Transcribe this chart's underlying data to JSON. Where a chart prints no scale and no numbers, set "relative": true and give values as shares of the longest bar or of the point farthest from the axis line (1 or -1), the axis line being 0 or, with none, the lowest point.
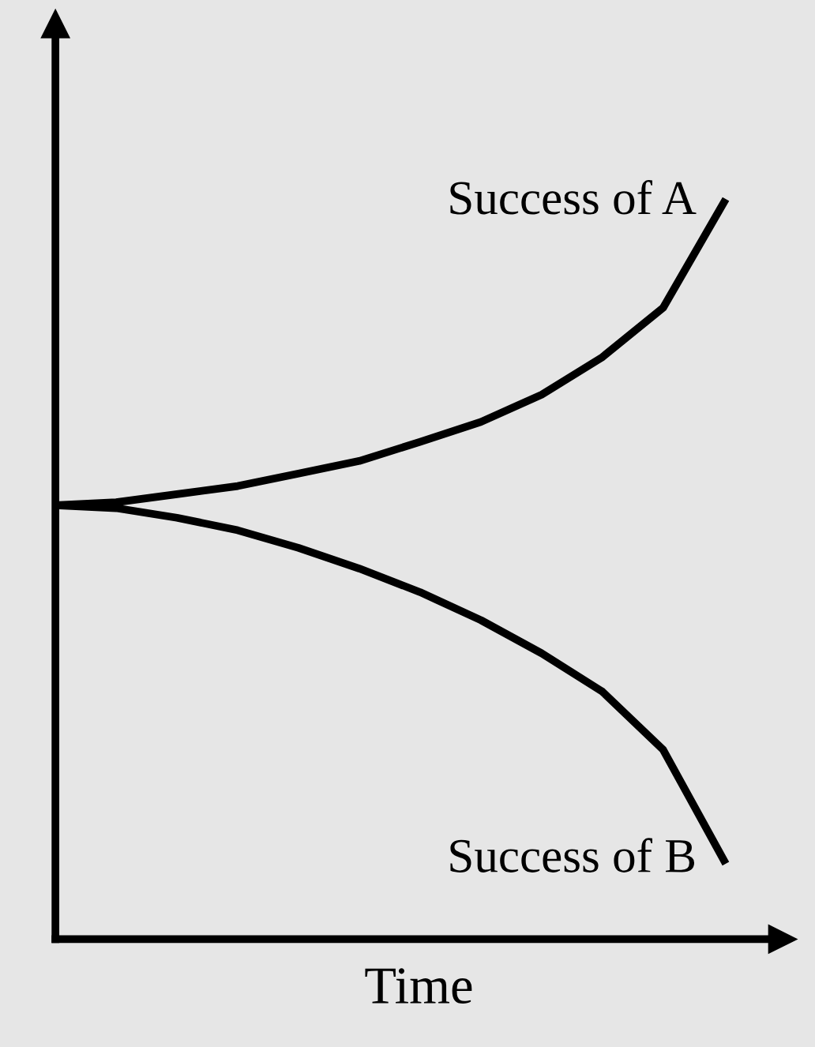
{
  "chart_data": {
    "type": "line",
    "relative": true,
    "xlabel": "Time",
    "categories": [
      null,
      null,
      null,
      null,
      null,
      null,
      null,
      null,
      null,
      null,
      null,
      null
    ],
    "series": [
      {
        "name": "Success of A",
        "color": "#000000",
        "values": [
          0.589,
          0.593,
          0.604,
          0.615,
          0.632,
          0.649,
          0.675,
          0.702,
          0.739,
          0.79,
          0.857,
          1.0
        ]
      },
      {
        "name": "Success of B",
        "color": "#000000",
        "values": [
          0.589,
          0.585,
          0.572,
          0.555,
          0.531,
          0.503,
          0.471,
          0.433,
          0.388,
          0.336,
          0.257,
          0.107
        ]
      }
    ],
    "grid": false,
    "legend": false,
    "marker": "none",
    "line_style": "solid"
  }
}
